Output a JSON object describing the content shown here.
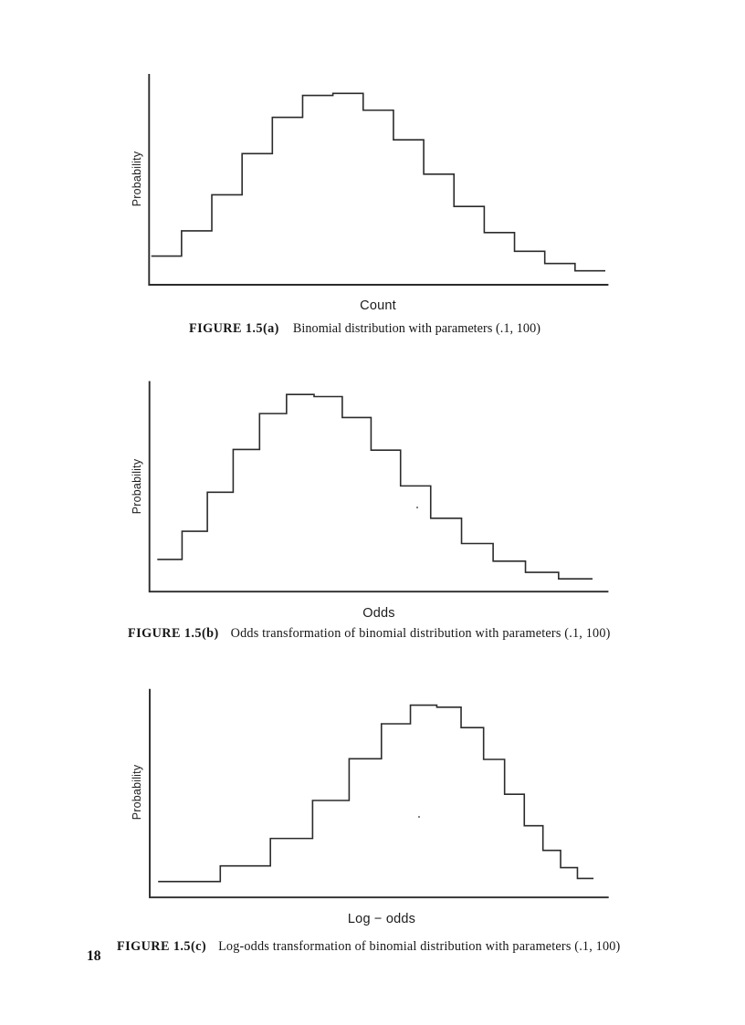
{
  "page": {
    "number": "18",
    "background": "#ffffff",
    "ink_color": "#2b2b2b"
  },
  "distribution": {
    "name": "binomial",
    "parameters_text": "(.1, 100)",
    "p": 0.1,
    "n": 100,
    "k": [
      4,
      5,
      6,
      7,
      8,
      9,
      10,
      11,
      12,
      13,
      14,
      15,
      16,
      17,
      18
    ],
    "pmf": [
      0.01587,
      0.03387,
      0.05958,
      0.0889,
      0.11482,
      0.13042,
      0.13187,
      0.11988,
      0.09879,
      0.0743,
      0.0513,
      0.03268,
      0.01929,
      0.01059,
      0.00543
    ]
  },
  "chart_data": [
    {
      "type": "step",
      "figure": "1.5(a)",
      "title": "Binomial distribution with parameters (.1, 100)",
      "xlabel": "Count",
      "ylabel": "Probability",
      "caption": {
        "label": "FIGURE 1.5(a)",
        "text": "Binomial distribution with parameters (.1, 100)"
      },
      "x_boundaries": [
        3.5,
        4.5,
        5.5,
        6.5,
        7.5,
        8.5,
        9.5,
        10.5,
        11.5,
        12.5,
        13.5,
        14.5,
        15.5,
        16.5,
        17.5,
        18.5
      ],
      "heights": [
        0.01587,
        0.03387,
        0.05958,
        0.0889,
        0.11482,
        0.13042,
        0.13187,
        0.11988,
        0.09879,
        0.0743,
        0.0513,
        0.03268,
        0.01929,
        0.01059,
        0.00543
      ],
      "xlim": [
        3.4276,
        18.6026
      ],
      "ylim": [
        -0.004554,
        0.145738
      ],
      "grid": false,
      "legend": false
    },
    {
      "type": "step",
      "figure": "1.5(b)",
      "title": "Odds transformation of binomial distribution with parameters (.1, 100)",
      "xlabel": "Odds",
      "ylabel": "Probability",
      "caption": {
        "label": "FIGURE 1.5(b)",
        "text": "Odds transformation of binomial distribution with parameters (.1, 100)"
      },
      "x_boundaries": [
        0.03627,
        0.04712,
        0.0582,
        0.06952,
        0.08108,
        0.0929,
        0.10497,
        0.11732,
        0.12994,
        0.14286,
        0.15607,
        0.16959,
        0.18343,
        0.1976,
        0.21212,
        0.22699
      ],
      "heights": [
        1.463,
        3.0563,
        5.2642,
        7.6883,
        9.7183,
        10.7994,
        10.6808,
        9.4952,
        7.6499,
        5.6237,
        3.7943,
        2.3612,
        1.3612,
        0.7296,
        0.3649
      ],
      "xlim": [
        0.032832,
        0.23395
      ],
      "ylim": [
        -0.3617,
        11.559
      ],
      "grid": false,
      "legend": false
    },
    {
      "type": "step",
      "figure": "1.5(c)",
      "title": "Log-odds transformation of binomial distribution with parameters (.1, 100)",
      "xlabel": "Log − odds",
      "ylabel": "Probability",
      "caption": {
        "label": "FIGURE 1.5(c)",
        "text": "Log-odds transformation of binomial distribution with parameters (.1, 100)"
      },
      "x_boundaries": [
        -3.3168,
        -3.055,
        -2.8439,
        -2.6662,
        -2.5123,
        -2.3763,
        -2.2541,
        -2.1429,
        -2.0407,
        -1.9459,
        -1.8575,
        -1.7744,
        -1.6959,
        -1.6215,
        -1.5506,
        -1.4828
      ],
      "heights": [
        0.0607,
        0.1604,
        0.3353,
        0.5778,
        0.8441,
        1.0671,
        1.1859,
        1.1729,
        1.0427,
        0.84,
        0.6175,
        0.4166,
        0.2592,
        0.1494,
        0.0801
      ],
      "xlim": [
        -3.35218,
        -1.41896
      ],
      "ylim": [
        -0.040772,
        1.289575
      ],
      "grid": false,
      "legend": false
    }
  ]
}
